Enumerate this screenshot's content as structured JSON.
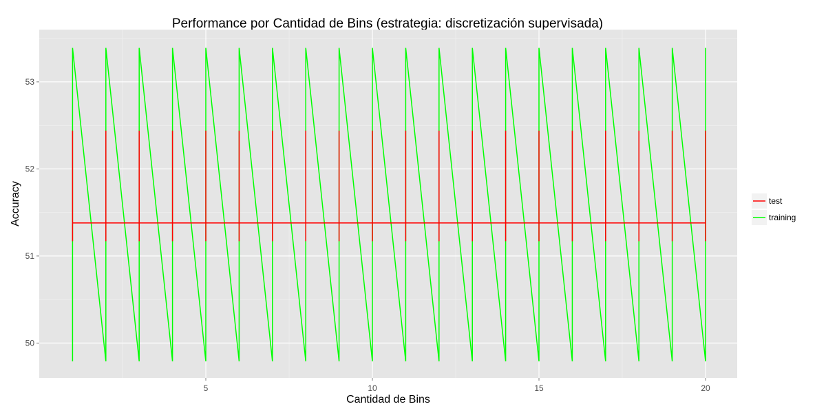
{
  "chart_data": {
    "type": "line",
    "title": "Performance por Cantidad de Bins (estrategia: discretización supervisada)",
    "xlabel": "Cantidad de Bins",
    "ylabel": "Accuracy",
    "xlim": [
      0.0,
      20.95
    ],
    "ylim": [
      49.6,
      53.6
    ],
    "x_ticks": [
      5,
      10,
      15,
      20
    ],
    "y_ticks": [
      50,
      51,
      52,
      53
    ],
    "grid": true,
    "panel_background": "#e5e5e5",
    "legend_position": "right",
    "series": [
      {
        "name": "test",
        "color": "#ff0000",
        "points": [
          [
            1,
            52.44
          ],
          [
            1,
            51.17
          ],
          [
            1,
            51.38
          ],
          [
            2,
            51.38
          ],
          [
            2,
            52.44
          ],
          [
            2,
            51.17
          ],
          [
            2,
            51.38
          ],
          [
            3,
            51.38
          ],
          [
            3,
            52.44
          ],
          [
            3,
            51.17
          ],
          [
            3,
            51.38
          ],
          [
            4,
            51.38
          ],
          [
            4,
            52.44
          ],
          [
            4,
            51.17
          ],
          [
            4,
            51.38
          ],
          [
            5,
            51.38
          ],
          [
            5,
            52.44
          ],
          [
            5,
            51.17
          ],
          [
            5,
            51.38
          ],
          [
            6,
            51.38
          ],
          [
            6,
            52.44
          ],
          [
            6,
            51.17
          ],
          [
            6,
            51.38
          ],
          [
            7,
            51.38
          ],
          [
            7,
            52.44
          ],
          [
            7,
            51.17
          ],
          [
            7,
            51.38
          ],
          [
            8,
            51.38
          ],
          [
            8,
            52.44
          ],
          [
            8,
            51.17
          ],
          [
            8,
            51.38
          ],
          [
            9,
            51.38
          ],
          [
            9,
            52.44
          ],
          [
            9,
            51.17
          ],
          [
            9,
            51.38
          ],
          [
            10,
            51.38
          ],
          [
            10,
            52.44
          ],
          [
            10,
            51.17
          ],
          [
            10,
            51.38
          ],
          [
            11,
            51.38
          ],
          [
            11,
            52.44
          ],
          [
            11,
            51.17
          ],
          [
            11,
            51.38
          ],
          [
            12,
            51.38
          ],
          [
            12,
            52.44
          ],
          [
            12,
            51.17
          ],
          [
            12,
            51.38
          ],
          [
            13,
            51.38
          ],
          [
            13,
            52.44
          ],
          [
            13,
            51.17
          ],
          [
            13,
            51.38
          ],
          [
            14,
            51.38
          ],
          [
            14,
            52.44
          ],
          [
            14,
            51.17
          ],
          [
            14,
            51.38
          ],
          [
            15,
            51.38
          ],
          [
            15,
            52.44
          ],
          [
            15,
            51.17
          ],
          [
            15,
            51.38
          ],
          [
            16,
            51.38
          ],
          [
            16,
            52.44
          ],
          [
            16,
            51.17
          ],
          [
            16,
            51.38
          ],
          [
            17,
            51.38
          ],
          [
            17,
            52.44
          ],
          [
            17,
            51.17
          ],
          [
            17,
            51.38
          ],
          [
            18,
            51.38
          ],
          [
            18,
            52.44
          ],
          [
            18,
            51.17
          ],
          [
            18,
            51.38
          ],
          [
            19,
            51.38
          ],
          [
            19,
            52.44
          ],
          [
            19,
            51.17
          ],
          [
            19,
            51.38
          ],
          [
            20,
            51.38
          ],
          [
            20,
            52.44
          ],
          [
            20,
            51.17
          ]
        ]
      },
      {
        "name": "training",
        "color": "#00ff00",
        "points": [
          [
            1,
            49.79
          ],
          [
            1,
            53.39
          ],
          [
            2,
            49.79
          ],
          [
            2,
            53.39
          ],
          [
            3,
            49.79
          ],
          [
            3,
            53.39
          ],
          [
            4,
            49.79
          ],
          [
            4,
            53.39
          ],
          [
            5,
            49.79
          ],
          [
            5,
            53.39
          ],
          [
            6,
            49.79
          ],
          [
            6,
            53.39
          ],
          [
            7,
            49.79
          ],
          [
            7,
            53.39
          ],
          [
            8,
            49.79
          ],
          [
            8,
            53.39
          ],
          [
            9,
            49.79
          ],
          [
            9,
            53.39
          ],
          [
            10,
            49.79
          ],
          [
            10,
            53.39
          ],
          [
            11,
            49.79
          ],
          [
            11,
            53.39
          ],
          [
            12,
            49.79
          ],
          [
            12,
            53.39
          ],
          [
            13,
            49.79
          ],
          [
            13,
            53.39
          ],
          [
            14,
            49.79
          ],
          [
            14,
            53.39
          ],
          [
            15,
            49.79
          ],
          [
            15,
            53.39
          ],
          [
            16,
            49.79
          ],
          [
            16,
            53.39
          ],
          [
            17,
            49.79
          ],
          [
            17,
            53.39
          ],
          [
            18,
            49.79
          ],
          [
            18,
            53.39
          ],
          [
            19,
            49.79
          ],
          [
            19,
            53.39
          ],
          [
            20,
            49.79
          ],
          [
            20,
            53.39
          ]
        ]
      }
    ]
  }
}
